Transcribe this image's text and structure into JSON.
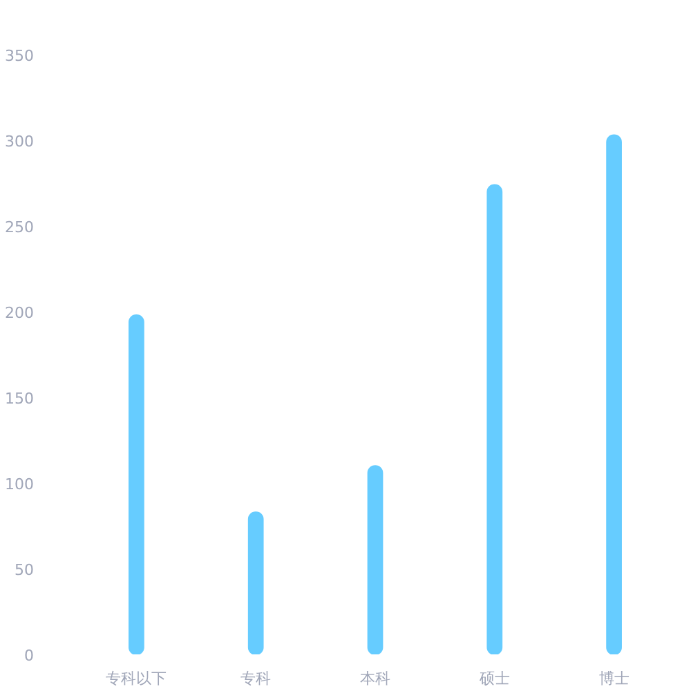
{
  "chart_data": {
    "type": "bar",
    "categories": [
      "专科以下",
      "专科",
      "本科",
      "硕士",
      "博士"
    ],
    "values": [
      198,
      83,
      110,
      274,
      303
    ],
    "color": "#66ccff",
    "ylim": [
      0,
      350
    ],
    "yticks": [
      0,
      50,
      100,
      150,
      200,
      250,
      300,
      350
    ],
    "grid": false
  }
}
